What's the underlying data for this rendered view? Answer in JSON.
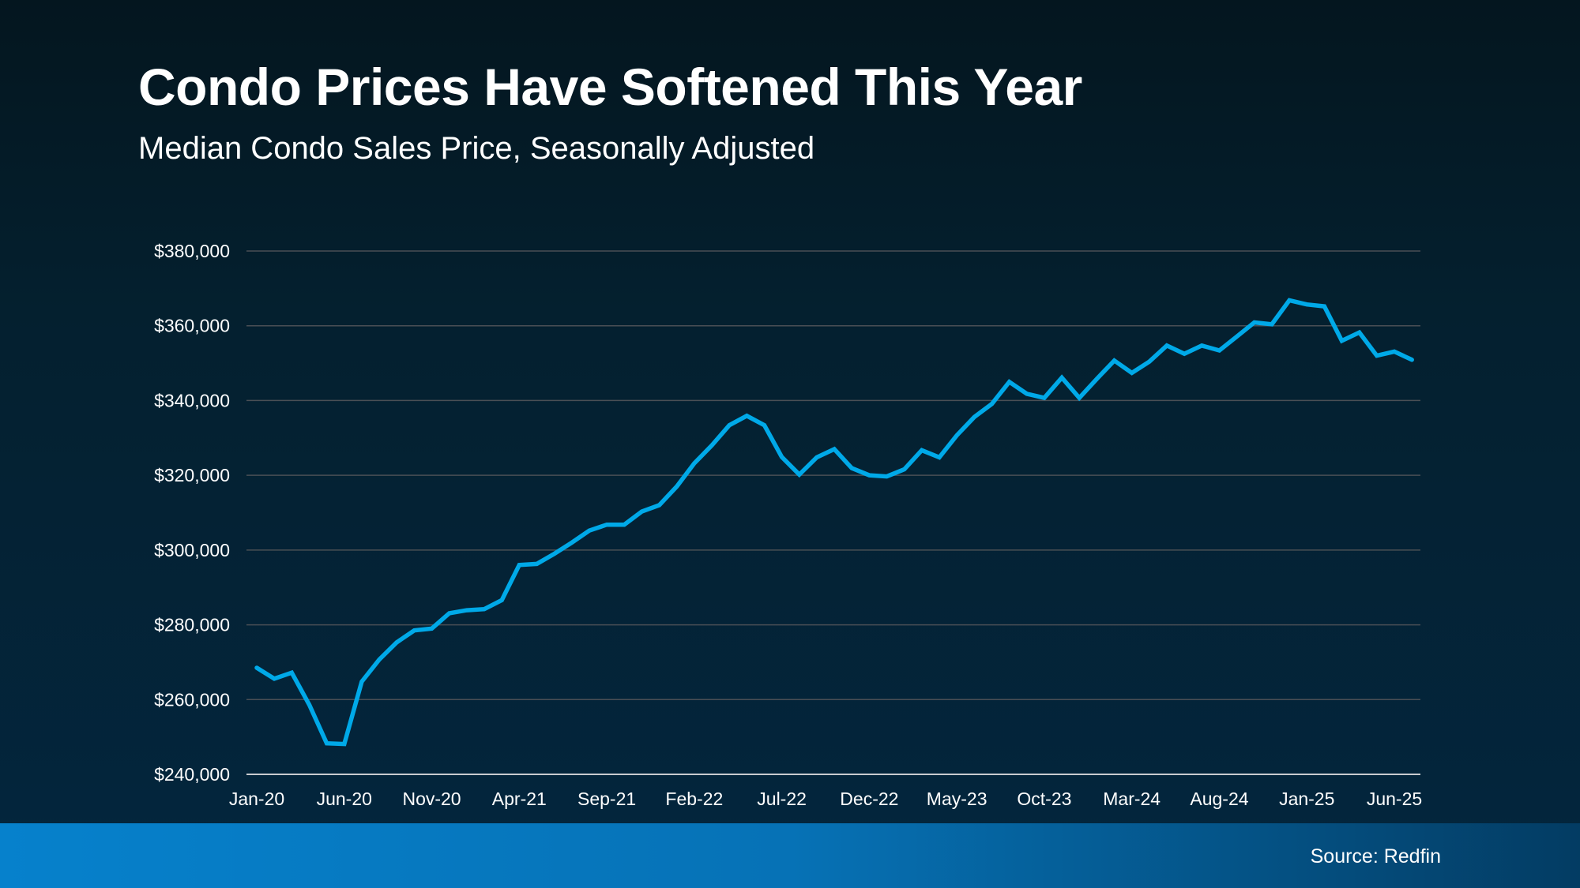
{
  "header": {
    "title": "Condo Prices Have Softened This Year",
    "subtitle": "Median Condo Sales Price, Seasonally Adjusted"
  },
  "footer": {
    "source": "Source: Redfin"
  },
  "colors": {
    "line": "#00a9e8",
    "grid": "#4a4f55",
    "footer_band": "#0681cc"
  },
  "chart_data": {
    "type": "line",
    "title": "Condo Prices Have Softened This Year",
    "subtitle": "Median Condo Sales Price, Seasonally Adjusted",
    "xlabel": "",
    "ylabel": "",
    "ylim": [
      240000,
      380000
    ],
    "yticks": [
      240000,
      260000,
      280000,
      300000,
      320000,
      340000,
      360000,
      380000
    ],
    "ytick_labels": [
      "$240,000",
      "$260,000",
      "$280,000",
      "$300,000",
      "$320,000",
      "$340,000",
      "$360,000",
      "$380,000"
    ],
    "xtick_labels": [
      "Jan-20",
      "Jun-20",
      "Nov-20",
      "Apr-21",
      "Sep-21",
      "Feb-22",
      "Jul-22",
      "Dec-22",
      "May-23",
      "Oct-23",
      "Mar-24",
      "Aug-24",
      "Jan-25",
      "Jun-25"
    ],
    "grid": true,
    "x": [
      "Jan-20",
      "Feb-20",
      "Mar-20",
      "Apr-20",
      "May-20",
      "Jun-20",
      "Jul-20",
      "Aug-20",
      "Sep-20",
      "Oct-20",
      "Nov-20",
      "Dec-20",
      "Jan-21",
      "Feb-21",
      "Mar-21",
      "Apr-21",
      "May-21",
      "Jun-21",
      "Jul-21",
      "Aug-21",
      "Sep-21",
      "Oct-21",
      "Nov-21",
      "Dec-21",
      "Jan-22",
      "Feb-22",
      "Mar-22",
      "Apr-22",
      "May-22",
      "Jun-22",
      "Jul-22",
      "Aug-22",
      "Sep-22",
      "Oct-22",
      "Nov-22",
      "Dec-22",
      "Jan-23",
      "Feb-23",
      "Mar-23",
      "Apr-23",
      "May-23",
      "Jun-23",
      "Jul-23",
      "Aug-23",
      "Sep-23",
      "Oct-23",
      "Nov-23",
      "Dec-23",
      "Jan-24",
      "Feb-24",
      "Mar-24",
      "Apr-24",
      "May-24",
      "Jun-24",
      "Jul-24",
      "Aug-24",
      "Sep-24",
      "Oct-24",
      "Nov-24",
      "Dec-24",
      "Jan-25",
      "Feb-25",
      "Mar-25",
      "Apr-25",
      "May-25",
      "Jun-25",
      "Jul-25"
    ],
    "values": [
      268500,
      265600,
      267200,
      258600,
      248300,
      248100,
      264800,
      270700,
      275300,
      278500,
      279000,
      283100,
      283900,
      284200,
      286600,
      296000,
      296300,
      299000,
      302000,
      305200,
      306800,
      306800,
      310300,
      312000,
      317000,
      323200,
      328000,
      333400,
      335900,
      333400,
      324900,
      320200,
      324800,
      327000,
      321900,
      320000,
      319700,
      321600,
      326700,
      324800,
      330700,
      335600,
      339100,
      345000,
      341800,
      340700,
      346100,
      340700,
      345800,
      350700,
      347400,
      350400,
      354700,
      352500,
      354700,
      353400,
      357100,
      360900,
      360400,
      366800,
      365700,
      365200,
      356000,
      358200,
      352000,
      353100,
      350900
    ]
  }
}
